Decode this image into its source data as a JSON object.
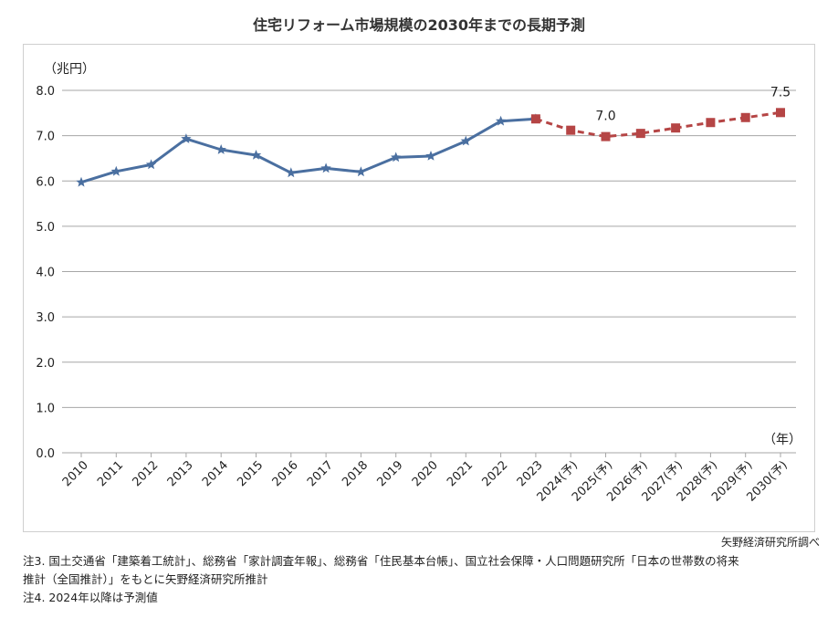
{
  "title": "住宅リフォーム市場規模の2030年までの長期予測",
  "source": "矢野経済研究所調べ",
  "notes": [
    "注3.  国土交通省「建築着工統計」、総務省「家計調査年報」、総務省「住民基本台帳」、国立社会保障・人口問題研究所「日本の世帯数の将来",
    "推計（全国推計）」をもとに矢野経済研究所推計",
    "注4.  2024年以降は予測値"
  ],
  "colors": {
    "actual": "#4a6fa0",
    "forecast": "#b54545",
    "grid": "#a6a6a6"
  },
  "chart_data": {
    "type": "line",
    "ylabel": "（兆円）",
    "xlabel": "（年）",
    "ylim": [
      0,
      8
    ],
    "yticks": [
      "0.0",
      "1.0",
      "2.0",
      "3.0",
      "4.0",
      "5.0",
      "6.0",
      "7.0",
      "8.0"
    ],
    "grid": true,
    "categories": [
      "2010",
      "2011",
      "2012",
      "2013",
      "2014",
      "2015",
      "2016",
      "2017",
      "2018",
      "2019",
      "2020",
      "2021",
      "2022",
      "2023",
      "2024(予)",
      "2025(予)",
      "2026(予)",
      "2027(予)",
      "2028(予)",
      "2029(予)",
      "2030(予)"
    ],
    "series": [
      {
        "style": "solid",
        "values": [
          5.97,
          6.21,
          6.36,
          6.93,
          6.69,
          6.57,
          6.18,
          6.28,
          6.2,
          6.52,
          6.55,
          6.88,
          7.32,
          7.37,
          null,
          null,
          null,
          null,
          null,
          null,
          null
        ]
      },
      {
        "style": "dashed",
        "values": [
          null,
          null,
          null,
          null,
          null,
          null,
          null,
          null,
          null,
          null,
          null,
          null,
          null,
          7.37,
          7.12,
          6.98,
          7.05,
          7.17,
          7.29,
          7.4,
          7.51
        ]
      }
    ],
    "annotations": [
      {
        "category": "2025(予)",
        "text": "7.0"
      },
      {
        "category": "2030(予)",
        "text": "7.5"
      }
    ]
  }
}
